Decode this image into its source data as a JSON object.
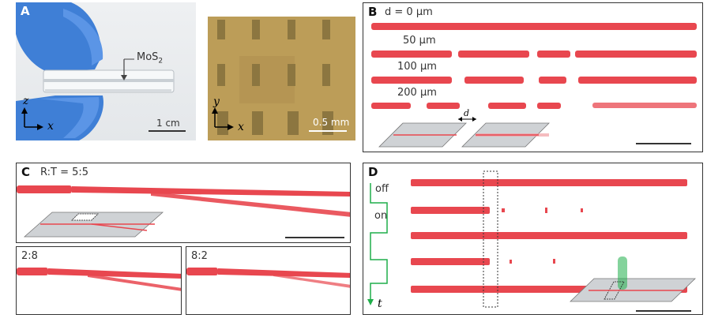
{
  "panelA": {
    "label": "A",
    "material_label": "MoS",
    "material_sub": "2",
    "axis_z": "z",
    "axis_x": "x",
    "scale_left": "1 cm",
    "axis_y2": "y",
    "axis_x2": "x",
    "scale_right": "0.5 mm"
  },
  "panelB": {
    "label": "B",
    "gap_first": "d = 0 μm",
    "gap_labels": [
      "50 μm",
      "100 μm",
      "200 μm"
    ],
    "inset_symbol": "d"
  },
  "panelC": {
    "label": "C",
    "main_ratio": "R:T = 5:5",
    "ratio_left": "2:8",
    "ratio_right": "8:2"
  },
  "panelD": {
    "label": "D",
    "state_off": "off",
    "state_on": "on",
    "time_axis": "t"
  },
  "colors": {
    "beam": "#e8474f",
    "beam_light": "#f2a0a4",
    "control": "#1fae4a",
    "panel_border": "#333333"
  }
}
